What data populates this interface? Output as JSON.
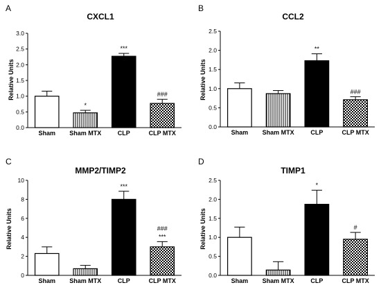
{
  "chart_data": [
    {
      "panel": "A",
      "type": "bar",
      "title": "CXCL1",
      "ylabel": "Relative Units",
      "xlabel": "",
      "categories": [
        "Sham",
        "Sham MTX",
        "CLP",
        "CLP MTX"
      ],
      "values": [
        1.0,
        0.47,
        2.27,
        0.77
      ],
      "errors": [
        0.16,
        0.08,
        0.09,
        0.13
      ],
      "annotations": [
        [
          ""
        ],
        [
          "*"
        ],
        [
          "***"
        ],
        [
          "###"
        ]
      ],
      "ylim": [
        0,
        3.0
      ],
      "yticks": [
        "0.0",
        "0.5",
        "1.0",
        "1.5",
        "2.0",
        "2.5",
        "3.0"
      ],
      "fills": [
        "white",
        "vertical-stripes",
        "black",
        "checker"
      ],
      "grid": false,
      "legend": "none"
    },
    {
      "panel": "B",
      "type": "bar",
      "title": "CCL2",
      "ylabel": "Relative Units",
      "xlabel": "",
      "categories": [
        "Sham",
        "Sham MTX",
        "CLP",
        "CLP MTX"
      ],
      "values": [
        1.0,
        0.87,
        1.73,
        0.71
      ],
      "errors": [
        0.15,
        0.08,
        0.18,
        0.08
      ],
      "annotations": [
        [
          ""
        ],
        [
          ""
        ],
        [
          "**"
        ],
        [
          "###"
        ]
      ],
      "ylim": [
        0,
        2.5
      ],
      "yticks": [
        "0.0",
        "0.5",
        "1.0",
        "1.5",
        "2.0",
        "2.5"
      ],
      "fills": [
        "white",
        "vertical-stripes",
        "black",
        "checker"
      ],
      "grid": false,
      "legend": "none"
    },
    {
      "panel": "C",
      "type": "bar",
      "title": "MMP2/TIMP2",
      "ylabel": "Relative Units",
      "xlabel": "",
      "categories": [
        "Sham",
        "Sham MTX",
        "CLP",
        "CLP MTX"
      ],
      "values": [
        2.3,
        0.7,
        8.0,
        3.0
      ],
      "errors": [
        0.7,
        0.35,
        0.85,
        0.55
      ],
      "annotations": [
        [
          ""
        ],
        [
          ""
        ],
        [
          "***"
        ],
        [
          "###",
          "***"
        ]
      ],
      "ylim": [
        0,
        10
      ],
      "yticks": [
        "0",
        "2",
        "4",
        "6",
        "8",
        "10"
      ],
      "fills": [
        "white",
        "vertical-stripes",
        "black",
        "checker"
      ],
      "grid": false,
      "legend": "none"
    },
    {
      "panel": "D",
      "type": "bar",
      "title": "TIMP1",
      "ylabel": "Relative Units",
      "xlabel": "",
      "categories": [
        "Sham",
        "Sham MTX",
        "CLP",
        "CLP MTX"
      ],
      "values": [
        1.0,
        0.14,
        1.87,
        0.95
      ],
      "errors": [
        0.27,
        0.22,
        0.37,
        0.18
      ],
      "annotations": [
        [
          ""
        ],
        [
          ""
        ],
        [
          "*"
        ],
        [
          "#"
        ]
      ],
      "ylim": [
        0,
        2.5
      ],
      "yticks": [
        "0.0",
        "0.5",
        "1.0",
        "1.5",
        "2.0",
        "2.5"
      ],
      "fills": [
        "white",
        "vertical-stripes",
        "black",
        "checker"
      ],
      "grid": false,
      "legend": "none"
    }
  ]
}
